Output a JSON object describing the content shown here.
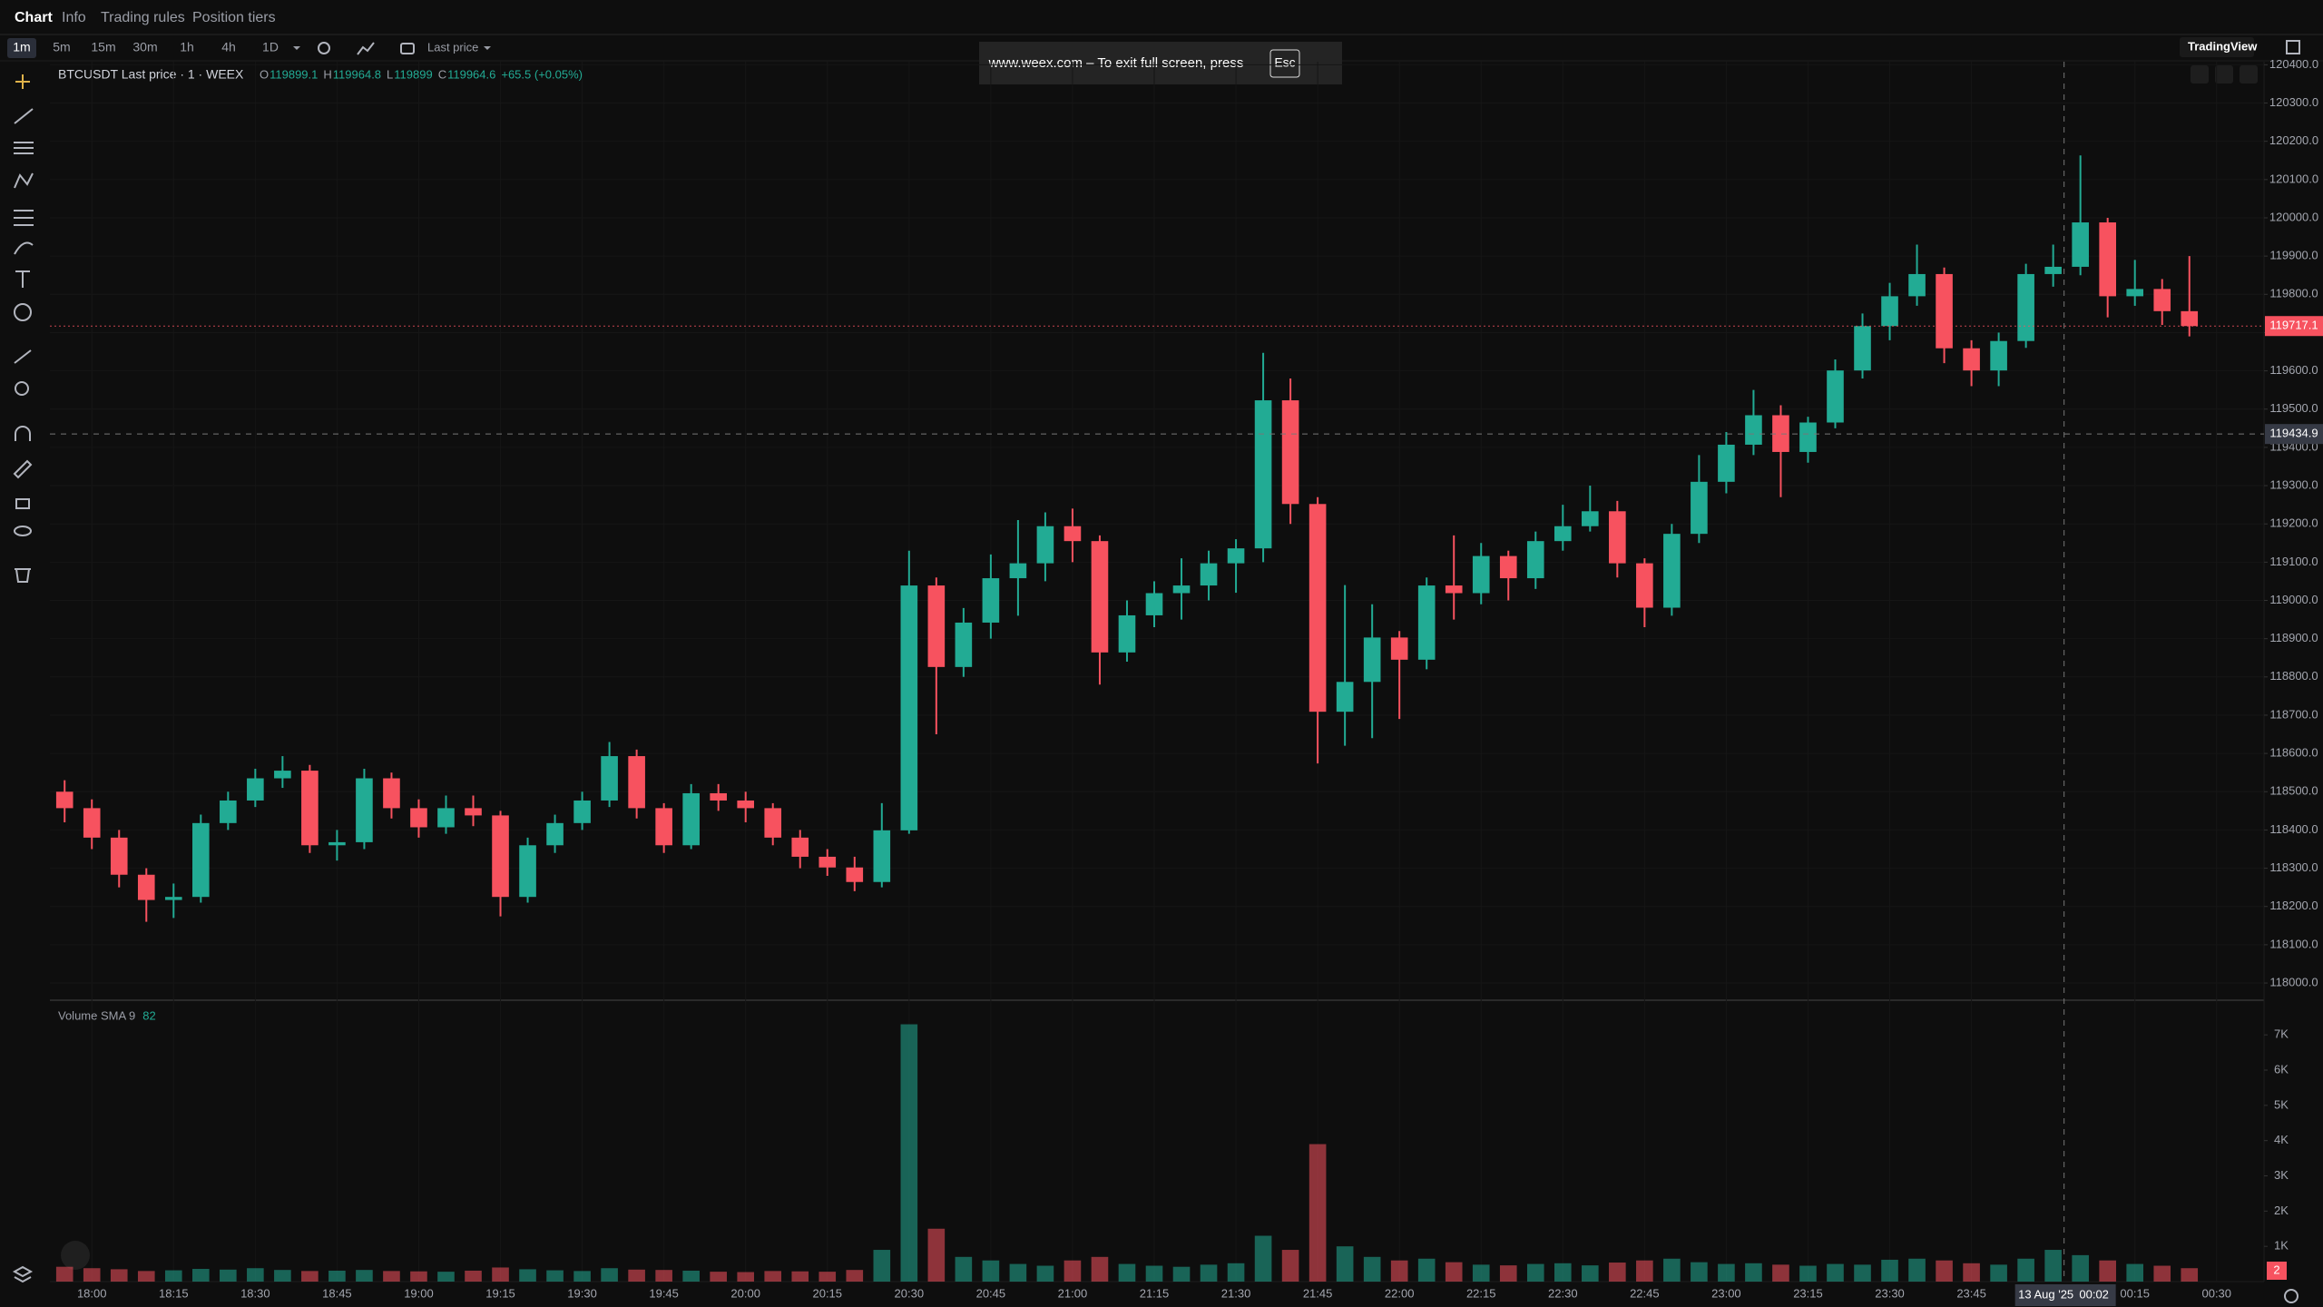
{
  "ui": {
    "tabs": [
      "Chart",
      "Info",
      "Trading rules",
      "Position tiers"
    ],
    "intervals": [
      "1m",
      "5m",
      "15m",
      "30m",
      "1h",
      "4h",
      "1D"
    ],
    "price_mode": "Last price",
    "notice": {
      "text": "www.weex.com – To exit full screen, press",
      "key": "Esc"
    },
    "provider": "TradingView"
  },
  "chart_data": {
    "type": "candlestick",
    "title": "BTCUSDT Last price · 1 · WEEX",
    "legend": [
      {
        "label": "O",
        "value": 119899.1
      },
      {
        "label": "H",
        "value": 119964.8
      },
      {
        "label": "L",
        "value": 119899.0
      },
      {
        "label": "C",
        "value": 119964.6
      }
    ],
    "change": "+65.5 (+0.05%)",
    "up_color": "#22ab94",
    "down_color": "#f7525f",
    "grid": true,
    "x": [
      1075,
      1080,
      1085,
      1090,
      1095,
      1100,
      1105,
      1110,
      1115,
      1120,
      1125,
      1130,
      1135,
      1140,
      1145,
      1150,
      1155,
      1160,
      1165,
      1170,
      1175,
      1180,
      1185,
      1190,
      1195,
      1200,
      1205,
      1210,
      1215,
      1220,
      1225,
      1230,
      1235,
      1240,
      1245,
      1250,
      1255,
      1260,
      1265,
      1270,
      1275,
      1280,
      1285,
      1290,
      1295,
      1300,
      1305,
      1310,
      1315,
      1320,
      1325,
      1330,
      1335,
      1340,
      1345,
      1350,
      1355,
      1360,
      1365,
      1370,
      1375,
      1380,
      1385,
      1390,
      1395,
      1400,
      1405,
      1410,
      1415,
      1420,
      1425,
      1430,
      1435,
      1440,
      1445,
      1450,
      1455,
      1460,
      1465
    ],
    "open": [
      118500,
      118457,
      118380,
      118283,
      118217,
      118225,
      118418,
      118477,
      118535,
      118555,
      118360,
      118368,
      118535,
      118457,
      118407,
      118457,
      118438,
      118225,
      118360,
      118418,
      118477,
      118593,
      118457,
      118360,
      118496,
      118477,
      118457,
      118380,
      118330,
      118302,
      118264,
      118399,
      119039,
      118826,
      118942,
      119058,
      119097,
      119194,
      119155,
      118864,
      118961,
      119019,
      119039,
      119097,
      119136,
      119523,
      119252,
      118709,
      118787,
      118903,
      118845,
      119039,
      119019,
      119116,
      119058,
      119155,
      119194,
      119233,
      119097,
      118981,
      119174,
      119310,
      119407,
      119484,
      119388,
      119465,
      119601,
      119717,
      119795,
      119853,
      119659,
      119601,
      119678,
      119853,
      119872,
      119988,
      119795,
      119814,
      119756
    ],
    "high": [
      118530,
      118480,
      118400,
      118300,
      118260,
      118440,
      118500,
      118560,
      118593,
      118570,
      118400,
      118560,
      118550,
      118480,
      118490,
      118490,
      118450,
      118380,
      118440,
      118500,
      118630,
      118610,
      118470,
      118520,
      118520,
      118500,
      118470,
      118400,
      118350,
      118330,
      118470,
      119130,
      119060,
      118980,
      119120,
      119210,
      119230,
      119240,
      119170,
      119000,
      119050,
      119110,
      119130,
      119160,
      119647,
      119580,
      119270,
      119040,
      118990,
      118920,
      119060,
      119170,
      119150,
      119130,
      119180,
      119250,
      119300,
      119260,
      119110,
      119200,
      119380,
      119440,
      119550,
      119510,
      119480,
      119630,
      119750,
      119830,
      119930,
      119870,
      119680,
      119700,
      119880,
      119930,
      120163,
      120000,
      119890,
      119840,
      119900
    ],
    "low": [
      118420,
      118350,
      118250,
      118160,
      118170,
      118210,
      118400,
      118460,
      118510,
      118340,
      118320,
      118350,
      118430,
      118380,
      118390,
      118410,
      118174,
      118210,
      118340,
      118400,
      118460,
      118430,
      118340,
      118350,
      118450,
      118420,
      118360,
      118300,
      118280,
      118240,
      118250,
      118390,
      118650,
      118800,
      118900,
      118960,
      119050,
      119100,
      118780,
      118840,
      118930,
      118950,
      119000,
      119020,
      119100,
      119200,
      118574,
      118620,
      118640,
      118690,
      118820,
      118950,
      118990,
      119000,
      119030,
      119130,
      119180,
      119060,
      118930,
      118960,
      119150,
      119280,
      119380,
      119270,
      119360,
      119450,
      119580,
      119680,
      119770,
      119620,
      119560,
      119560,
      119660,
      119820,
      119850,
      119740,
      119770,
      119720,
      119690
    ],
    "close": [
      118457,
      118380,
      118283,
      118217,
      118225,
      118418,
      118477,
      118535,
      118555,
      118360,
      118368,
      118535,
      118457,
      118407,
      118457,
      118438,
      118225,
      118360,
      118418,
      118477,
      118593,
      118457,
      118360,
      118496,
      118477,
      118457,
      118380,
      118330,
      118302,
      118264,
      118399,
      119039,
      118826,
      118942,
      119058,
      119097,
      119194,
      119155,
      118864,
      118961,
      119019,
      119039,
      119097,
      119136,
      119523,
      119252,
      118709,
      118787,
      118903,
      118845,
      119039,
      119019,
      119116,
      119058,
      119155,
      119194,
      119233,
      119097,
      118981,
      119174,
      119310,
      119407,
      119484,
      119388,
      119465,
      119601,
      119717,
      119795,
      119853,
      119659,
      119601,
      119678,
      119853,
      119872,
      119988,
      119795,
      119814,
      119756,
      119717.1
    ],
    "xlim": [
      1072.3,
      1478.7
    ],
    "xticks": [
      {
        "value": 1080,
        "label": "18:00"
      },
      {
        "value": 1095,
        "label": "18:15"
      },
      {
        "value": 1110,
        "label": "18:30"
      },
      {
        "value": 1125,
        "label": "18:45"
      },
      {
        "value": 1140,
        "label": "19:00"
      },
      {
        "value": 1155,
        "label": "19:15"
      },
      {
        "value": 1170,
        "label": "19:30"
      },
      {
        "value": 1185,
        "label": "19:45"
      },
      {
        "value": 1200,
        "label": "20:00"
      },
      {
        "value": 1215,
        "label": "20:15"
      },
      {
        "value": 1230,
        "label": "20:30"
      },
      {
        "value": 1245,
        "label": "20:45"
      },
      {
        "value": 1260,
        "label": "21:00"
      },
      {
        "value": 1275,
        "label": "21:15"
      },
      {
        "value": 1290,
        "label": "21:30"
      },
      {
        "value": 1305,
        "label": "21:45"
      },
      {
        "value": 1320,
        "label": "22:00"
      },
      {
        "value": 1335,
        "label": "22:15"
      },
      {
        "value": 1350,
        "label": "22:30"
      },
      {
        "value": 1365,
        "label": "22:45"
      },
      {
        "value": 1380,
        "label": "23:00"
      },
      {
        "value": 1395,
        "label": "23:15"
      },
      {
        "value": 1410,
        "label": "23:30"
      },
      {
        "value": 1425,
        "label": "23:45"
      },
      {
        "value": 1455,
        "label": "00:15"
      },
      {
        "value": 1470,
        "label": "00:30"
      }
    ],
    "ylim": [
      117955,
      120408
    ],
    "yticks": [
      {
        "value": 118000,
        "label": "118000.0"
      },
      {
        "value": 118100,
        "label": "118100.0"
      },
      {
        "value": 118200,
        "label": "118200.0"
      },
      {
        "value": 118300,
        "label": "118300.0"
      },
      {
        "value": 118400,
        "label": "118400.0"
      },
      {
        "value": 118500,
        "label": "118500.0"
      },
      {
        "value": 118600,
        "label": "118600.0"
      },
      {
        "value": 118700,
        "label": "118700.0"
      },
      {
        "value": 118800,
        "label": "118800.0"
      },
      {
        "value": 118900,
        "label": "118900.0"
      },
      {
        "value": 119000,
        "label": "119000.0"
      },
      {
        "value": 119100,
        "label": "119100.0"
      },
      {
        "value": 119200,
        "label": "119200.0"
      },
      {
        "value": 119300,
        "label": "119300.0"
      },
      {
        "value": 119400,
        "label": "119400.0"
      },
      {
        "value": 119500,
        "label": "119500.0"
      },
      {
        "value": 119600,
        "label": "119600.0"
      },
      {
        "value": 119700,
        "label": "119700.0"
      },
      {
        "value": 119800,
        "label": "119800.0"
      },
      {
        "value": 119900,
        "label": "119900.0"
      },
      {
        "value": 120000,
        "label": "120000.0"
      },
      {
        "value": 120100,
        "label": "120100.0"
      },
      {
        "value": 120200,
        "label": "120200.0"
      },
      {
        "value": 120300,
        "label": "120300.0"
      },
      {
        "value": 120400,
        "label": "120400.0"
      }
    ],
    "last_price": 119717.1,
    "crosshair": {
      "x": 1442,
      "price": 119434.9,
      "date_label": "13 Aug '25",
      "time_label": "00:02"
    },
    "volume": {
      "name": "Volume SMA 9",
      "sma": 82,
      "current": 2,
      "values": [
        420,
        380,
        350,
        300,
        320,
        360,
        340,
        380,
        330,
        300,
        310,
        330,
        300,
        290,
        280,
        310,
        400,
        350,
        320,
        300,
        380,
        340,
        330,
        310,
        280,
        270,
        300,
        290,
        280,
        330,
        900,
        7300,
        1500,
        700,
        600,
        500,
        450,
        600,
        700,
        500,
        450,
        420,
        480,
        520,
        1300,
        900,
        3900,
        1000,
        700,
        600,
        650,
        550,
        480,
        460,
        500,
        520,
        460,
        540,
        600,
        650,
        550,
        500,
        520,
        480,
        450,
        500,
        480,
        620,
        650,
        600,
        520,
        480,
        650,
        900,
        750,
        600,
        500,
        450,
        380
      ],
      "ylim": [
        0,
        7983
      ],
      "yticks": [
        {
          "value": 1000,
          "label": "1K"
        },
        {
          "value": 2000,
          "label": "2K"
        },
        {
          "value": 3000,
          "label": "3K"
        },
        {
          "value": 4000,
          "label": "4K"
        },
        {
          "value": 5000,
          "label": "5K"
        },
        {
          "value": 6000,
          "label": "6K"
        },
        {
          "value": 7000,
          "label": "7K"
        }
      ]
    }
  }
}
